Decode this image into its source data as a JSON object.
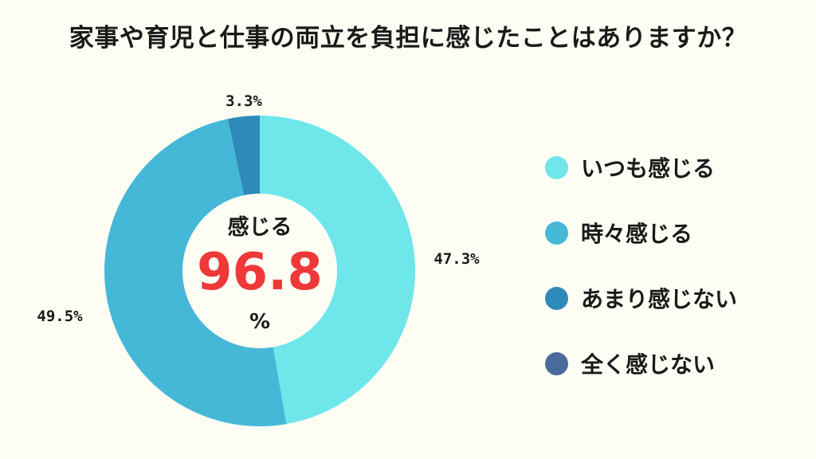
{
  "title": "家事や育児と仕事の両立を負担に感じたことはありますか？",
  "center": {
    "label": "感じる",
    "value": "96.8",
    "unit": "%"
  },
  "chart_data": {
    "type": "pie",
    "style": "donut",
    "title": "家事や育児と仕事の両立を負担に感じたことはありますか？",
    "categories": [
      "いつも感じる",
      "時々感じる",
      "あまり感じない",
      "全く感じない"
    ],
    "values": [
      47.3,
      49.5,
      3.3,
      0
    ],
    "data_labels": [
      "47.3%",
      "49.5%",
      "3.3%",
      ""
    ],
    "colors": [
      "#6ee6ea",
      "#45b8d8",
      "#2e8ab8",
      "#4a6a9c"
    ],
    "legend_placement": "right"
  },
  "legend": [
    {
      "label": "いつも感じる",
      "color": "#6ee6ea"
    },
    {
      "label": "時々感じる",
      "color": "#45b8d8"
    },
    {
      "label": "あまり感じない",
      "color": "#2e8ab8"
    },
    {
      "label": "全く感じない",
      "color": "#4a6a9c"
    }
  ]
}
